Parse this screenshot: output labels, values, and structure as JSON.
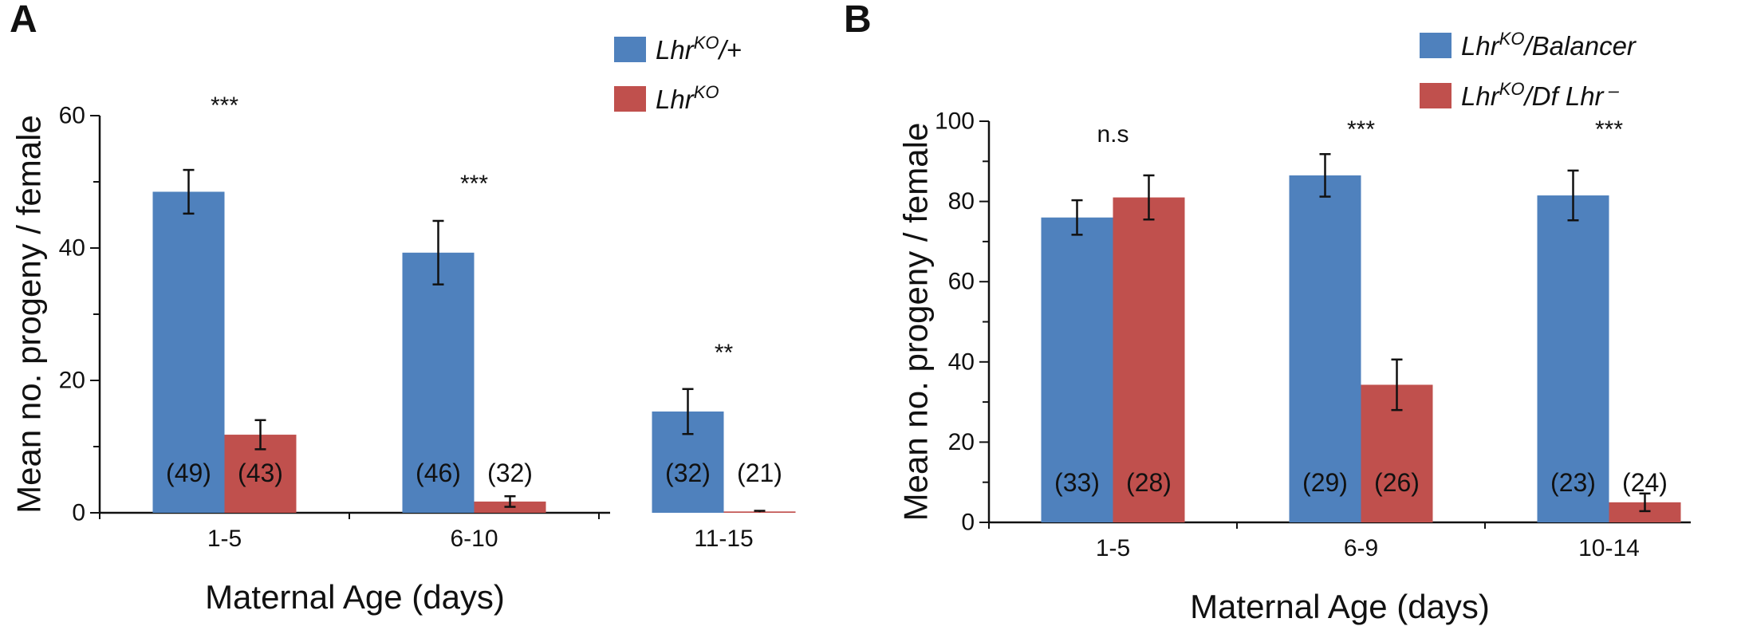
{
  "colors": {
    "blue": "#4f81bd",
    "red": "#c0504d"
  },
  "chart_data": [
    {
      "type": "bar",
      "panel": "A",
      "xlabel": "Maternal Age (days)",
      "ylabel": "Mean no. progeny / female",
      "ylim": [
        0,
        60
      ],
      "yticks": [
        "0",
        "20",
        "40",
        "60"
      ],
      "categories": [
        "1-5",
        "6-10",
        "11-15"
      ],
      "legend_position": "top-right",
      "series": [
        {
          "name": "Lhr",
          "sup": "KO",
          "suffix": "/+",
          "color": "#4f81bd",
          "values": [
            48.5,
            39.3,
            15.3
          ],
          "errors": [
            3.3,
            4.8,
            3.4
          ],
          "n": [
            "(49)",
            "(46)",
            "(32)"
          ]
        },
        {
          "name": "Lhr",
          "sup": "KO",
          "suffix": "",
          "color": "#c0504d",
          "values": [
            11.8,
            1.7,
            0.2
          ],
          "errors": [
            2.2,
            0.8,
            0.1
          ],
          "n": [
            "(43)",
            "(32)",
            "(21)"
          ]
        }
      ],
      "significance": [
        "***",
        "***",
        "**"
      ]
    },
    {
      "type": "bar",
      "panel": "B",
      "xlabel": "Maternal Age (days)",
      "ylabel": "Mean no. progeny / female",
      "ylim": [
        0,
        100
      ],
      "yticks": [
        "0",
        "20",
        "40",
        "60",
        "80",
        "100"
      ],
      "categories": [
        "1-5",
        "6-9",
        "10-14"
      ],
      "legend_position": "top-right",
      "series": [
        {
          "name": "Lhr",
          "sup": "KO",
          "suffix": "/Balancer",
          "color": "#4f81bd",
          "values": [
            76,
            86.5,
            81.5
          ],
          "errors": [
            4.3,
            5.3,
            6.2
          ],
          "n": [
            "(33)",
            "(29)",
            "(23)"
          ]
        },
        {
          "name": "Lhr",
          "sup": "KO",
          "suffix": "/Df Lhr⁻",
          "color": "#c0504d",
          "values": [
            81,
            34.3,
            5
          ],
          "errors": [
            5.5,
            6.3,
            2.2
          ],
          "n": [
            "(28)",
            "(26)",
            "(24)"
          ]
        }
      ],
      "significance": [
        "n.s",
        "***",
        "***"
      ]
    }
  ]
}
